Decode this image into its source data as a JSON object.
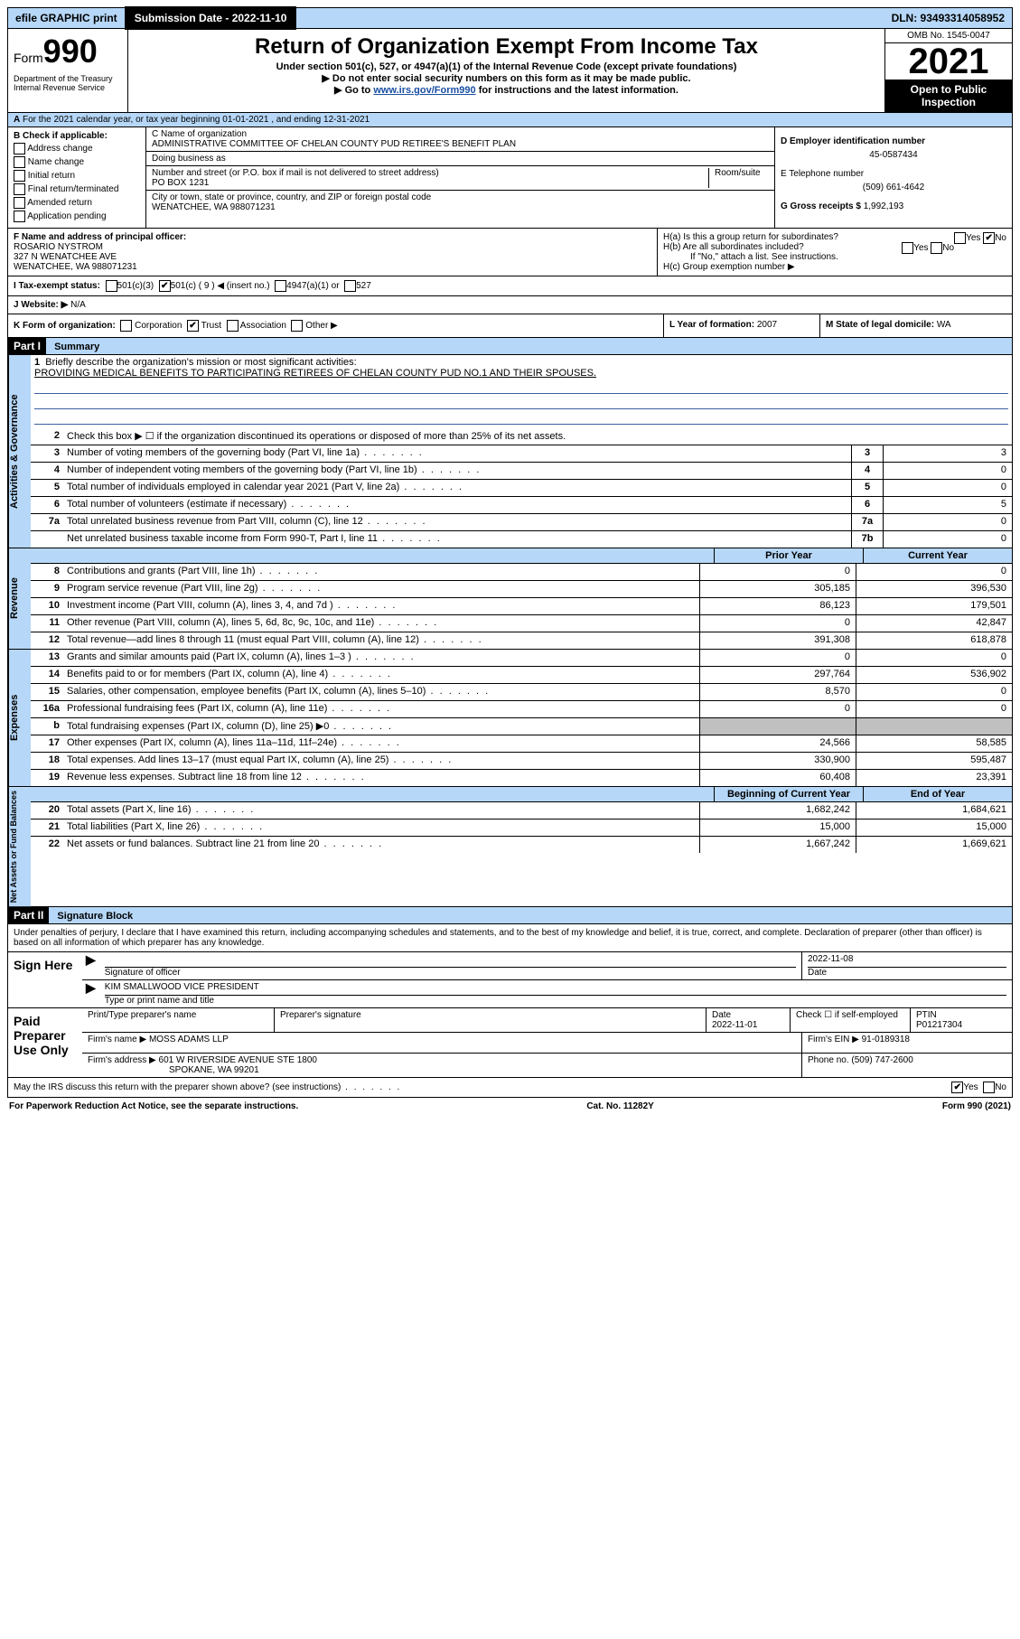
{
  "topbar": {
    "efile": "efile GRAPHIC print",
    "submission": "Submission Date - 2022-11-10",
    "dln": "DLN: 93493314058952"
  },
  "header": {
    "form_label": "Form",
    "form_num": "990",
    "title": "Return of Organization Exempt From Income Tax",
    "subtitle": "Under section 501(c), 527, or 4947(a)(1) of the Internal Revenue Code (except private foundations)",
    "note1": "▶ Do not enter social security numbers on this form as it may be made public.",
    "note2_pre": "▶ Go to ",
    "note2_link": "www.irs.gov/Form990",
    "note2_post": " for instructions and the latest information.",
    "dept": "Department of the Treasury\nInternal Revenue Service",
    "omb": "OMB No. 1545-0047",
    "year": "2021",
    "open_pub": "Open to Public Inspection"
  },
  "secA": "For the 2021 calendar year, or tax year beginning 01-01-2021    , and ending 12-31-2021",
  "B": {
    "label": "B Check if applicable:",
    "items": [
      "Address change",
      "Name change",
      "Initial return",
      "Final return/terminated",
      "Amended return",
      "Application pending"
    ]
  },
  "C": {
    "name_label": "C Name of organization",
    "name": "ADMINISTRATIVE COMMITTEE OF CHELAN COUNTY PUD RETIREE'S BENEFIT PLAN",
    "dba_label": "Doing business as",
    "addr_label": "Number and street (or P.O. box if mail is not delivered to street address)",
    "room_label": "Room/suite",
    "addr": "PO BOX 1231",
    "city_label": "City or town, state or province, country, and ZIP or foreign postal code",
    "city": "WENATCHEE, WA  988071231"
  },
  "D": {
    "label": "D Employer identification number",
    "ein": "45-0587434"
  },
  "E": {
    "label": "E Telephone number",
    "phone": "(509) 661-4642"
  },
  "G": {
    "label": "G Gross receipts $",
    "amount": "1,992,193"
  },
  "F": {
    "label": "F Name and address of principal officer:",
    "name": "ROSARIO NYSTROM",
    "addr1": "327 N WENATCHEE AVE",
    "addr2": "WENATCHEE, WA  988071231"
  },
  "H": {
    "a": "H(a)  Is this a group return for subordinates?",
    "b": "H(b)  Are all subordinates included?",
    "b_note": "If \"No,\" attach a list. See instructions.",
    "c": "H(c)  Group exemption number ▶",
    "yes": "Yes",
    "no": "No"
  },
  "I": {
    "label": "I   Tax-exempt status:",
    "opts": [
      "501(c)(3)",
      "501(c) ( 9 ) ◀ (insert no.)",
      "4947(a)(1) or",
      "527"
    ]
  },
  "J": {
    "label": "J   Website: ▶",
    "val": "N/A"
  },
  "K": {
    "label": "K Form of organization:",
    "opts": [
      "Corporation",
      "Trust",
      "Association",
      "Other ▶"
    ]
  },
  "L": {
    "label": "L Year of formation:",
    "val": "2007"
  },
  "M": {
    "label": "M State of legal domicile:",
    "val": "WA"
  },
  "part1": {
    "hdr": "Part I",
    "title": "Summary",
    "line1_label": "Briefly describe the organization's mission or most significant activities:",
    "line1_text": "PROVIDING MEDICAL BENEFITS TO PARTICIPATING RETIREES OF CHELAN COUNTY PUD NO.1 AND THEIR SPOUSES.",
    "line2": "Check this box ▶ ☐  if the organization discontinued its operations or disposed of more than 25% of its net assets.",
    "sections": {
      "gov": "Activities & Governance",
      "rev": "Revenue",
      "exp": "Expenses",
      "net": "Net Assets or Fund Balances"
    },
    "col_prior": "Prior Year",
    "col_current": "Current Year",
    "col_begin": "Beginning of Current Year",
    "col_end": "End of Year",
    "gov_lines": [
      {
        "n": "3",
        "d": "Number of voting members of the governing body (Part VI, line 1a)",
        "box": "3",
        "v": "3"
      },
      {
        "n": "4",
        "d": "Number of independent voting members of the governing body (Part VI, line 1b)",
        "box": "4",
        "v": "0"
      },
      {
        "n": "5",
        "d": "Total number of individuals employed in calendar year 2021 (Part V, line 2a)",
        "box": "5",
        "v": "0"
      },
      {
        "n": "6",
        "d": "Total number of volunteers (estimate if necessary)",
        "box": "6",
        "v": "5"
      },
      {
        "n": "7a",
        "d": "Total unrelated business revenue from Part VIII, column (C), line 12",
        "box": "7a",
        "v": "0"
      },
      {
        "n": "",
        "d": "Net unrelated business taxable income from Form 990-T, Part I, line 11",
        "box": "7b",
        "v": "0"
      }
    ],
    "rev_lines": [
      {
        "n": "8",
        "d": "Contributions and grants (Part VIII, line 1h)",
        "p": "0",
        "c": "0"
      },
      {
        "n": "9",
        "d": "Program service revenue (Part VIII, line 2g)",
        "p": "305,185",
        "c": "396,530"
      },
      {
        "n": "10",
        "d": "Investment income (Part VIII, column (A), lines 3, 4, and 7d )",
        "p": "86,123",
        "c": "179,501"
      },
      {
        "n": "11",
        "d": "Other revenue (Part VIII, column (A), lines 5, 6d, 8c, 9c, 10c, and 11e)",
        "p": "0",
        "c": "42,847"
      },
      {
        "n": "12",
        "d": "Total revenue—add lines 8 through 11 (must equal Part VIII, column (A), line 12)",
        "p": "391,308",
        "c": "618,878"
      }
    ],
    "exp_lines": [
      {
        "n": "13",
        "d": "Grants and similar amounts paid (Part IX, column (A), lines 1–3 )",
        "p": "0",
        "c": "0"
      },
      {
        "n": "14",
        "d": "Benefits paid to or for members (Part IX, column (A), line 4)",
        "p": "297,764",
        "c": "536,902"
      },
      {
        "n": "15",
        "d": "Salaries, other compensation, employee benefits (Part IX, column (A), lines 5–10)",
        "p": "8,570",
        "c": "0"
      },
      {
        "n": "16a",
        "d": "Professional fundraising fees (Part IX, column (A), line 11e)",
        "p": "0",
        "c": "0"
      },
      {
        "n": "b",
        "d": "Total fundraising expenses (Part IX, column (D), line 25) ▶0",
        "p": "",
        "c": "",
        "grey": true
      },
      {
        "n": "17",
        "d": "Other expenses (Part IX, column (A), lines 11a–11d, 11f–24e)",
        "p": "24,566",
        "c": "58,585"
      },
      {
        "n": "18",
        "d": "Total expenses. Add lines 13–17 (must equal Part IX, column (A), line 25)",
        "p": "330,900",
        "c": "595,487"
      },
      {
        "n": "19",
        "d": "Revenue less expenses. Subtract line 18 from line 12",
        "p": "60,408",
        "c": "23,391"
      }
    ],
    "net_lines": [
      {
        "n": "20",
        "d": "Total assets (Part X, line 16)",
        "p": "1,682,242",
        "c": "1,684,621"
      },
      {
        "n": "21",
        "d": "Total liabilities (Part X, line 26)",
        "p": "15,000",
        "c": "15,000"
      },
      {
        "n": "22",
        "d": "Net assets or fund balances. Subtract line 21 from line 20",
        "p": "1,667,242",
        "c": "1,669,621"
      }
    ]
  },
  "part2": {
    "hdr": "Part II",
    "title": "Signature Block",
    "decl": "Under penalties of perjury, I declare that I have examined this return, including accompanying schedules and statements, and to the best of my knowledge and belief, it is true, correct, and complete. Declaration of preparer (other than officer) is based on all information of which preparer has any knowledge.",
    "sign_here": "Sign Here",
    "sig_officer": "Signature of officer",
    "sig_date": "2022-11-08",
    "date_label": "Date",
    "officer_name": "KIM SMALLWOOD VICE PRESIDENT",
    "name_title_label": "Type or print name and title",
    "paid": "Paid Preparer Use Only",
    "prep_name_label": "Print/Type preparer's name",
    "prep_sig_label": "Preparer's signature",
    "prep_date_label": "Date",
    "prep_date": "2022-11-01",
    "check_self": "Check ☐ if self-employed",
    "ptin_label": "PTIN",
    "ptin": "P01217304",
    "firm_name_label": "Firm's name    ▶",
    "firm_name": "MOSS ADAMS LLP",
    "firm_ein_label": "Firm's EIN ▶",
    "firm_ein": "91-0189318",
    "firm_addr_label": "Firm's address ▶",
    "firm_addr1": "601 W RIVERSIDE AVENUE STE 1800",
    "firm_addr2": "SPOKANE, WA  99201",
    "firm_phone_label": "Phone no.",
    "firm_phone": "(509) 747-2600",
    "discuss": "May the IRS discuss this return with the preparer shown above? (see instructions)",
    "yes": "Yes",
    "no": "No"
  },
  "footer": {
    "left": "For Paperwork Reduction Act Notice, see the separate instructions.",
    "mid": "Cat. No. 11282Y",
    "right": "Form 990 (2021)"
  }
}
